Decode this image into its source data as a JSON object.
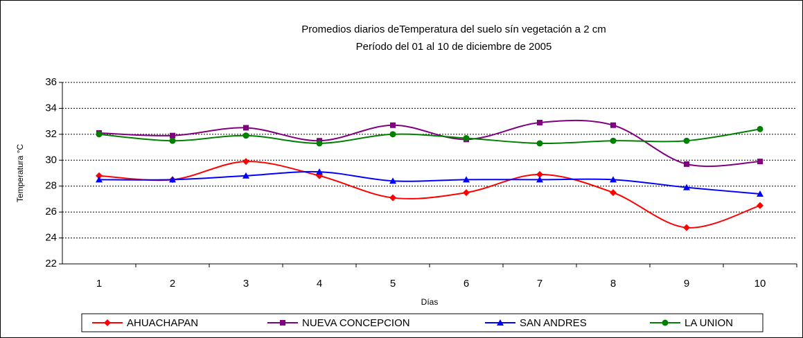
{
  "chart_data": {
    "type": "line",
    "title": "Promedios diarios deTemperatura del suelo sín vegetación a 2 cm",
    "subtitle": "Período del 01 al 10 de diciembre de 2005",
    "x_label": "Días",
    "y_label": "Temperatura °C",
    "categories": [
      "1",
      "2",
      "3",
      "4",
      "5",
      "6",
      "7",
      "8",
      "9",
      "10"
    ],
    "ylim": [
      22,
      36
    ],
    "yticks": [
      22,
      24,
      26,
      28,
      30,
      32,
      34,
      36
    ],
    "grid": true,
    "smooth": true,
    "legend": "bottom",
    "series": [
      {
        "name": "AHUACHAPAN",
        "color": "#ff0000",
        "marker": "diamond",
        "values": [
          28.8,
          28.5,
          29.9,
          28.8,
          27.1,
          27.5,
          28.9,
          27.5,
          24.8,
          26.5
        ]
      },
      {
        "name": "NUEVA CONCEPCION",
        "color": "#800080",
        "marker": "square",
        "values": [
          32.1,
          31.9,
          32.5,
          31.5,
          32.7,
          31.6,
          32.9,
          32.7,
          29.7,
          29.9
        ]
      },
      {
        "name": "SAN ANDRES",
        "color": "#0000ff",
        "marker": "triangle",
        "values": [
          28.5,
          28.5,
          28.8,
          29.1,
          28.4,
          28.5,
          28.5,
          28.5,
          27.9,
          27.4
        ]
      },
      {
        "name": "LA UNION",
        "color": "#008000",
        "marker": "circle",
        "values": [
          32.0,
          31.5,
          31.9,
          31.3,
          32.0,
          31.7,
          31.3,
          31.5,
          31.5,
          32.4
        ]
      }
    ]
  }
}
